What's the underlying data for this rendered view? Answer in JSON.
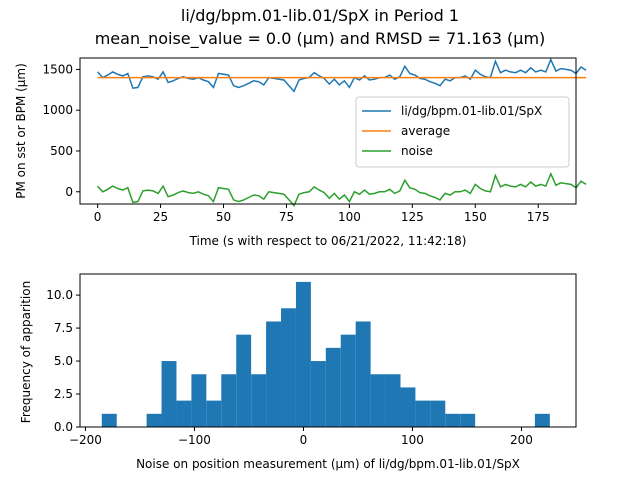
{
  "figure": {
    "title_line1": "li/dg/bpm.01-lib.01/SpX in Period 1",
    "title_line2": "mean_noise_value = 0.0 (μm) and RMSD = 71.163 (μm)"
  },
  "chart_data": [
    {
      "type": "line",
      "xlabel": "Time (s with respect to 06/21/2022, 11:42:18)",
      "ylabel": "PM on sst or BPM (μm)",
      "xlim": [
        -7,
        190
      ],
      "ylim": [
        -150,
        1640
      ],
      "xticks": [
        0,
        25,
        50,
        75,
        100,
        125,
        150,
        175
      ],
      "yticks": [
        0,
        500,
        1000,
        1500
      ],
      "grid": false,
      "legend_position": "center-right",
      "x_step": 2,
      "series": [
        {
          "name": "li/dg/bpm.01-lib.01/SpX",
          "color": "#1f77b4",
          "values": [
            1470,
            1400,
            1430,
            1470,
            1440,
            1420,
            1450,
            1270,
            1280,
            1410,
            1420,
            1410,
            1380,
            1470,
            1340,
            1360,
            1390,
            1410,
            1390,
            1380,
            1400,
            1370,
            1350,
            1280,
            1450,
            1440,
            1430,
            1300,
            1280,
            1300,
            1330,
            1360,
            1350,
            1310,
            1400,
            1390,
            1380,
            1370,
            1300,
            1230,
            1370,
            1390,
            1400,
            1460,
            1420,
            1390,
            1320,
            1380,
            1310,
            1360,
            1280,
            1400,
            1370,
            1420,
            1370,
            1380,
            1400,
            1400,
            1430,
            1380,
            1410,
            1540,
            1450,
            1430,
            1390,
            1380,
            1350,
            1330,
            1300,
            1380,
            1360,
            1400,
            1400,
            1420,
            1380,
            1490,
            1440,
            1410,
            1400,
            1600,
            1460,
            1490,
            1470,
            1460,
            1490,
            1460,
            1520,
            1470,
            1490,
            1470,
            1620,
            1480,
            1510,
            1500,
            1490,
            1450,
            1530,
            1490
          ]
        },
        {
          "name": "average",
          "color": "#ff7f0e",
          "constant": 1400
        },
        {
          "name": "noise",
          "color": "#2ca02c",
          "values": [
            70,
            0,
            30,
            70,
            40,
            20,
            50,
            -130,
            -120,
            10,
            20,
            10,
            -20,
            70,
            -60,
            -40,
            -10,
            10,
            -10,
            -20,
            0,
            -30,
            -50,
            -120,
            50,
            40,
            30,
            -100,
            -120,
            -100,
            -70,
            -40,
            -50,
            -90,
            0,
            -10,
            -20,
            -30,
            -100,
            -170,
            -30,
            -10,
            0,
            60,
            20,
            -10,
            -80,
            -20,
            -90,
            -40,
            -120,
            0,
            -30,
            20,
            -30,
            -20,
            0,
            0,
            30,
            -20,
            10,
            140,
            50,
            30,
            -10,
            -20,
            -50,
            -70,
            -100,
            -20,
            -40,
            0,
            0,
            20,
            -20,
            90,
            40,
            10,
            0,
            200,
            60,
            90,
            70,
            60,
            90,
            60,
            120,
            70,
            90,
            70,
            220,
            80,
            110,
            100,
            90,
            50,
            130,
            90
          ]
        }
      ]
    },
    {
      "type": "bar",
      "subtype": "histogram",
      "xlabel": "Noise on position measurement (μm) of li/dg/bpm.01-lib.01/SpX",
      "ylabel": "Frequency of apparition",
      "xlim": [
        -205,
        250
      ],
      "ylim": [
        0,
        11.6
      ],
      "xticks": [
        -200,
        -100,
        0,
        100,
        200
      ],
      "yticks": [
        0.0,
        2.5,
        5.0,
        7.5,
        10.0,
        12.5
      ],
      "ytick_labels": [
        "0.0",
        "2.5",
        "5.0",
        "7.5",
        "10.0"
      ],
      "grid": false,
      "color": "#1f77b4",
      "bin_start": -185,
      "bin_width": 13.7,
      "counts": [
        1,
        0,
        0,
        1,
        5,
        2,
        4,
        2,
        4,
        7,
        4,
        8,
        9,
        11,
        5,
        6,
        7,
        8,
        4,
        4,
        3,
        2,
        2,
        1,
        1,
        0,
        0,
        0,
        0,
        1
      ]
    }
  ]
}
